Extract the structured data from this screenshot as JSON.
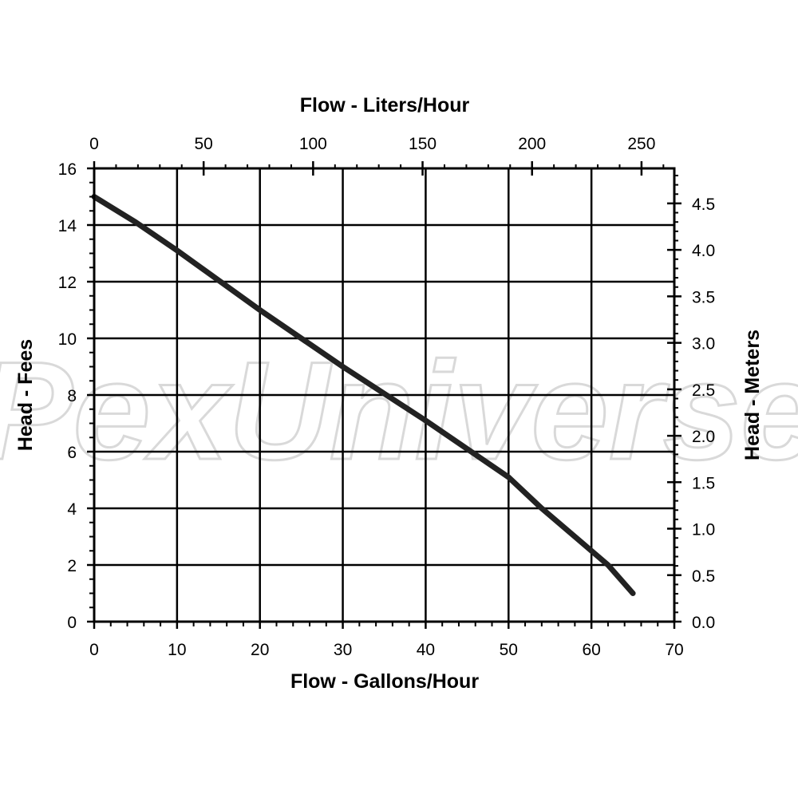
{
  "watermark": "PexUniverse",
  "chart_data": {
    "type": "line",
    "x": [
      0,
      5,
      10,
      20,
      30,
      40,
      50,
      54,
      58,
      62,
      65
    ],
    "series": [
      {
        "values": [
          15,
          14.1,
          13.1,
          11,
          9,
          7.1,
          5.1,
          4.0,
          3.0,
          2.0,
          1.0
        ]
      }
    ],
    "line_color": "#222222",
    "xlabel": "Flow - Gallons/Hour",
    "ylabel": "Head - Fees",
    "x2label": "Flow - Liters/Hour",
    "y2label": "Head - Meters",
    "xlim": [
      0,
      70
    ],
    "ylim": [
      0,
      16
    ],
    "x2lim": [
      0,
      264.98
    ],
    "y2lim": [
      0,
      4.877
    ],
    "xticks": [
      "0",
      "10",
      "20",
      "30",
      "40",
      "50",
      "60",
      "70"
    ],
    "yticks": [
      "0",
      "2",
      "4",
      "6",
      "8",
      "10",
      "12",
      "14",
      "16"
    ],
    "x2ticks": [
      "0",
      "50",
      "100",
      "150",
      "200",
      "250"
    ],
    "y2ticks": [
      "0.0",
      "0.5",
      "1.0",
      "1.5",
      "2.0",
      "2.5",
      "3.0",
      "3.5",
      "4.0",
      "4.5"
    ],
    "grid": true
  }
}
